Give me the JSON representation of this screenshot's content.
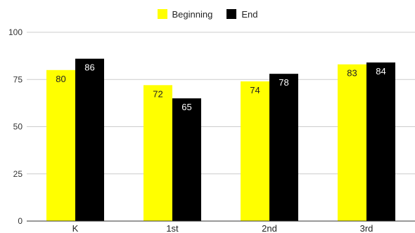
{
  "chart_data": {
    "type": "bar",
    "categories": [
      "K",
      "1st",
      "2nd",
      "3rd"
    ],
    "series": [
      {
        "name": "Beginning",
        "color": "#ffff00",
        "values": [
          80,
          72,
          74,
          83
        ]
      },
      {
        "name": "End",
        "color": "#000000",
        "values": [
          86,
          65,
          78,
          84
        ]
      }
    ],
    "ylim": [
      0,
      100
    ],
    "yticks": [
      "0",
      "25",
      "50",
      "75",
      "100"
    ],
    "grid": true,
    "legend_position": "top-center"
  }
}
